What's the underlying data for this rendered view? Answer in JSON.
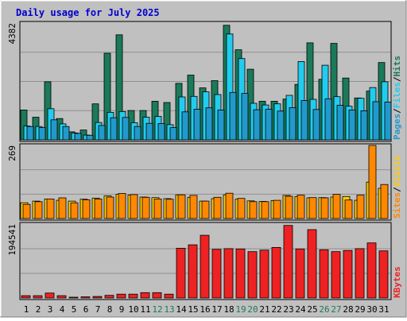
{
  "chart_data": {
    "type": "bar",
    "title": "Daily usage for July 2025",
    "categories": [
      "1",
      "2",
      "3",
      "4",
      "5",
      "6",
      "7",
      "8",
      "9",
      "10",
      "11",
      "12",
      "13",
      "14",
      "15",
      "16",
      "17",
      "18",
      "19",
      "20",
      "21",
      "22",
      "23",
      "24",
      "25",
      "26",
      "27",
      "28",
      "29",
      "30",
      "31"
    ],
    "weekend_days": [
      "12",
      "13",
      "19",
      "20",
      "26",
      "27"
    ],
    "panels": [
      {
        "name": "top",
        "scale_max_label": "4382",
        "ylim": [
          0,
          4382
        ],
        "side_label": [
          "Pages",
          "/",
          "Files",
          "/",
          "Hits"
        ],
        "series": [
          {
            "name": "Hits",
            "color": "#1a7a5a",
            "values": [
              1120,
              850,
              2180,
              800,
              300,
              370,
              1350,
              3250,
              3940,
              1100,
              1100,
              1450,
              1400,
              2120,
              2430,
              1950,
              2220,
              4300,
              3380,
              2650,
              1450,
              1450,
              1530,
              2080,
              3640,
              2270,
              3620,
              2320,
              1570,
              1830,
              2900
            ]
          },
          {
            "name": "Files",
            "color": "#22ccee",
            "values": [
              520,
              500,
              1170,
              600,
              260,
              180,
              650,
              1030,
              1060,
              640,
              850,
              880,
              570,
              1610,
              1630,
              1800,
              1700,
              3970,
              3050,
              1370,
              1310,
              1350,
              1670,
              2940,
              1520,
              2800,
              1620,
              1260,
              1560,
              1960,
              2180
            ]
          },
          {
            "name": "Pages",
            "color": "#2299cc",
            "values": [
              500,
              460,
              750,
              500,
              240,
              170,
              540,
              830,
              840,
              500,
              620,
              610,
              460,
              1050,
              1150,
              1200,
              1120,
              1780,
              1740,
              1130,
              1150,
              1080,
              1210,
              1480,
              1140,
              1540,
              1300,
              1120,
              1090,
              1430,
              1420
            ]
          }
        ]
      },
      {
        "name": "middle",
        "scale_max_label": "269",
        "ylim": [
          0,
          269
        ],
        "side_label": [
          "Sites",
          "/",
          "Visits"
        ],
        "series": [
          {
            "name": "Visits",
            "color": "#ffcc00",
            "values": [
              58,
              64,
              72,
              67,
              64,
              71,
              75,
              83,
              89,
              86,
              79,
              77,
              73,
              87,
              78,
              64,
              73,
              87,
              71,
              65,
              63,
              66,
              85,
              81,
              76,
              77,
              79,
              81,
              67,
              134,
              111
            ]
          },
          {
            "name": "Sites",
            "color": "#ff8800",
            "values": [
              52,
              62,
              72,
              76,
              58,
              69,
              72,
              79,
              92,
              88,
              78,
              72,
              71,
              87,
              85,
              64,
              78,
              93,
              74,
              62,
              62,
              67,
              82,
              86,
              77,
              76,
              89,
              68,
              86,
              269,
              125
            ]
          }
        ]
      },
      {
        "name": "bottom",
        "scale_max_label": "194541",
        "ylim": [
          0,
          194541
        ],
        "side_label": [
          "KBytes"
        ],
        "series": [
          {
            "name": "KBytes",
            "color": "#ee2222",
            "values": [
              6000,
              6000,
              13000,
              6000,
              2000,
              3000,
              4000,
              7000,
              10000,
              10000,
              14000,
              14000,
              10000,
              131000,
              140000,
              165000,
              128000,
              130000,
              129000,
              122000,
              126000,
              133000,
              191000,
              129000,
              180000,
              127000,
              122000,
              125000,
              130000,
              145000,
              124000
            ]
          }
        ]
      }
    ]
  }
}
